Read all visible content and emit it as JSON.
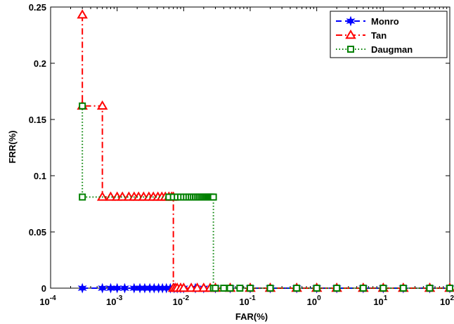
{
  "chart_data": {
    "type": "line",
    "title": "",
    "xlabel": "FAR(%)",
    "ylabel": "FRR(%)",
    "x_scale": "log",
    "xlim": [
      0.0001,
      100
    ],
    "ylim": [
      0,
      0.25
    ],
    "grid": false,
    "legend_position": "top-right",
    "x_ticks": [
      {
        "value": 0.0001,
        "base": "10",
        "exp": "-4"
      },
      {
        "value": 0.001,
        "base": "10",
        "exp": "-3"
      },
      {
        "value": 0.01,
        "base": "10",
        "exp": "-2"
      },
      {
        "value": 0.1,
        "base": "10",
        "exp": "-1"
      },
      {
        "value": 1,
        "base": "10",
        "exp": "0"
      },
      {
        "value": 10,
        "base": "10",
        "exp": "1"
      },
      {
        "value": 100,
        "base": "10",
        "exp": "2"
      }
    ],
    "y_ticks": [
      {
        "value": 0,
        "label": "0"
      },
      {
        "value": 0.05,
        "label": "0.05"
      },
      {
        "value": 0.1,
        "label": "0.1"
      },
      {
        "value": 0.15,
        "label": "0.15"
      },
      {
        "value": 0.2,
        "label": "0.2"
      },
      {
        "value": 0.25,
        "label": "0.25"
      }
    ],
    "series": [
      {
        "name": "Monro",
        "color": "#0000ff",
        "line_style": "dashed",
        "marker": "star",
        "marker_filled": true,
        "x": [
          0.0003,
          0.0006,
          0.0008,
          0.001,
          0.0013,
          0.0018,
          0.0022,
          0.0026,
          0.0031,
          0.0036,
          0.0042,
          0.0048,
          0.0055,
          0.0063,
          0.0072,
          0.008,
          0.009,
          0.01,
          0.015,
          0.02,
          0.03,
          0.05,
          0.1,
          0.2,
          0.5,
          1,
          2,
          5,
          10,
          20,
          50,
          100
        ],
        "y": [
          0,
          0,
          0,
          0,
          0,
          0,
          0,
          0,
          0,
          0,
          0,
          0,
          0,
          0,
          0,
          0,
          0,
          0,
          0,
          0,
          0,
          0,
          0,
          0,
          0,
          0,
          0,
          0,
          0,
          0,
          0,
          0
        ]
      },
      {
        "name": "Tan",
        "color": "#ff0000",
        "line_style": "dashdot",
        "marker": "triangle",
        "marker_filled": false,
        "x": [
          0.0003,
          0.0003,
          0.0006,
          0.0006,
          0.0008,
          0.001,
          0.0012,
          0.0015,
          0.0018,
          0.0021,
          0.0025,
          0.003,
          0.0035,
          0.0041,
          0.0047,
          0.0053,
          0.006,
          0.0066,
          0.007,
          0.007,
          0.0075,
          0.008,
          0.009,
          0.01,
          0.013,
          0.016,
          0.02,
          0.025,
          0.03,
          0.05,
          0.1,
          0.2,
          0.5,
          1,
          2,
          5,
          10,
          20,
          50,
          100
        ],
        "y": [
          0.243,
          0.162,
          0.162,
          0.081,
          0.081,
          0.081,
          0.081,
          0.081,
          0.081,
          0.081,
          0.081,
          0.081,
          0.081,
          0.081,
          0.081,
          0.081,
          0.081,
          0.081,
          0.081,
          0,
          0,
          0,
          0,
          0,
          0,
          0,
          0,
          0,
          0,
          0,
          0,
          0,
          0,
          0,
          0,
          0,
          0,
          0,
          0,
          0
        ]
      },
      {
        "name": "Daugman",
        "color": "#008000",
        "line_style": "dotted",
        "marker": "square",
        "marker_filled": false,
        "x": [
          0.0003,
          0.0003,
          0.006,
          0.007,
          0.008,
          0.009,
          0.01,
          0.011,
          0.012,
          0.013,
          0.014,
          0.015,
          0.016,
          0.017,
          0.018,
          0.019,
          0.02,
          0.021,
          0.022,
          0.023,
          0.024,
          0.025,
          0.026,
          0.027,
          0.028,
          0.028,
          0.03,
          0.04,
          0.05,
          0.07,
          0.1,
          0.2,
          0.5,
          1,
          2,
          5,
          10,
          20,
          50,
          100
        ],
        "y": [
          0.162,
          0.081,
          0.081,
          0.081,
          0.081,
          0.081,
          0.081,
          0.081,
          0.081,
          0.081,
          0.081,
          0.081,
          0.081,
          0.081,
          0.081,
          0.081,
          0.081,
          0.081,
          0.081,
          0.081,
          0.081,
          0.081,
          0.081,
          0.081,
          0.081,
          0,
          0,
          0,
          0,
          0,
          0,
          0,
          0,
          0,
          0,
          0,
          0,
          0,
          0,
          0
        ]
      }
    ]
  }
}
